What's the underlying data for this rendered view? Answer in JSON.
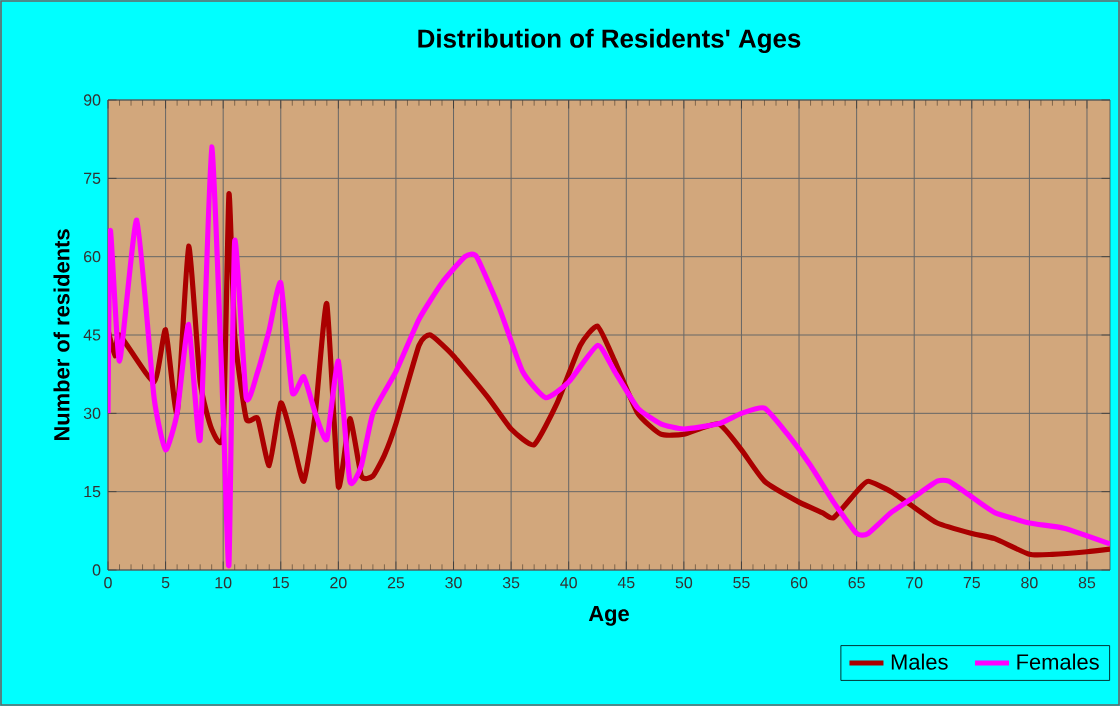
{
  "chart_data": {
    "type": "line",
    "title": "Distribution of Residents' Ages",
    "xlabel": "Age",
    "ylabel": "Number of residents",
    "xlim": [
      0,
      87
    ],
    "xticks": [
      0,
      5,
      10,
      15,
      20,
      25,
      30,
      35,
      40,
      45,
      50,
      55,
      60,
      65,
      70,
      75,
      80,
      85
    ],
    "ylim": [
      0,
      90
    ],
    "yticks": [
      0,
      15,
      30,
      45,
      60,
      75,
      90
    ],
    "grid": true,
    "legend": "bottom right",
    "series": [
      {
        "name": "Males",
        "color": "#aa0000",
        "x": [
          0,
          0.6,
          1,
          4,
          5,
          6,
          7,
          8,
          9,
          10,
          10.5,
          11,
          12,
          13,
          14,
          15,
          16,
          17,
          18,
          19,
          20,
          21,
          22,
          23,
          24,
          25,
          27,
          28,
          30,
          33,
          35,
          37,
          39,
          41,
          42.5,
          44,
          46,
          48,
          50,
          53,
          55,
          57,
          60,
          62,
          63,
          65,
          66,
          68,
          70,
          72,
          75,
          77,
          80,
          82,
          85,
          87
        ],
        "values": [
          46,
          41,
          45,
          36,
          46,
          30,
          62,
          36,
          27,
          26,
          72,
          45,
          29,
          29,
          20,
          32,
          25,
          17,
          30,
          51,
          16,
          29,
          18,
          18,
          22,
          28,
          43,
          45,
          41,
          33,
          27,
          24,
          32,
          43,
          46.7,
          40,
          30,
          26,
          26,
          28,
          23,
          17,
          13,
          11,
          10,
          15,
          17,
          15,
          12,
          9,
          7,
          6,
          3,
          3,
          3.5,
          4
        ]
      },
      {
        "name": "Females",
        "color": "#ff00ff",
        "x": [
          0,
          0.2,
          1,
          2.5,
          4,
          5,
          6,
          7,
          8,
          9,
          10,
          10.5,
          11,
          12,
          13,
          14,
          15,
          16,
          17,
          18,
          19,
          20,
          21,
          22,
          23,
          25,
          27,
          29,
          31,
          32,
          34,
          36,
          38,
          40,
          42.5,
          44,
          46,
          48,
          50,
          53,
          55,
          57,
          59,
          61,
          63,
          65,
          66,
          68,
          70,
          72,
          73,
          75,
          77,
          80,
          83,
          87
        ],
        "values": [
          30,
          65,
          40,
          67,
          33,
          23,
          30,
          47,
          25,
          81,
          30,
          1,
          63,
          33,
          38,
          46,
          55,
          34,
          37,
          30,
          25,
          40,
          17,
          20,
          30,
          38,
          48,
          55,
          60,
          60,
          50,
          38,
          33,
          36,
          43,
          38,
          31,
          28,
          27,
          28,
          30,
          31,
          26,
          20,
          13,
          7,
          7,
          11,
          14,
          17,
          17,
          14,
          11,
          9,
          8,
          5
        ]
      }
    ]
  }
}
